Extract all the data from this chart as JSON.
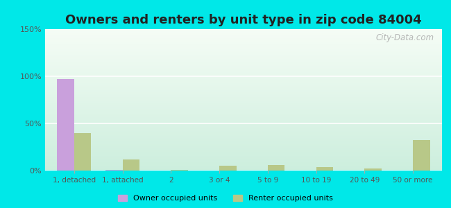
{
  "title": "Owners and renters by unit type in zip code 84004",
  "categories": [
    "1, detached",
    "1, attached",
    "2",
    "3 or 4",
    "5 to 9",
    "10 to 19",
    "20 to 49",
    "50 or more"
  ],
  "owner_values": [
    97,
    1,
    0,
    0,
    0,
    0,
    0,
    0
  ],
  "renter_values": [
    40,
    12,
    1,
    5,
    6,
    4,
    2,
    32
  ],
  "owner_color": "#c9a0dc",
  "renter_color": "#b8c888",
  "background_outer": "#00e8e8",
  "ylim": [
    0,
    150
  ],
  "yticks": [
    0,
    50,
    100,
    150
  ],
  "ytick_labels": [
    "0%",
    "50%",
    "100%",
    "150%"
  ],
  "legend_owner": "Owner occupied units",
  "legend_renter": "Renter occupied units",
  "watermark": "City-Data.com",
  "title_fontsize": 13,
  "bar_width": 0.35,
  "grad_top": "#f5fcf5",
  "grad_bottom": "#cceedd"
}
